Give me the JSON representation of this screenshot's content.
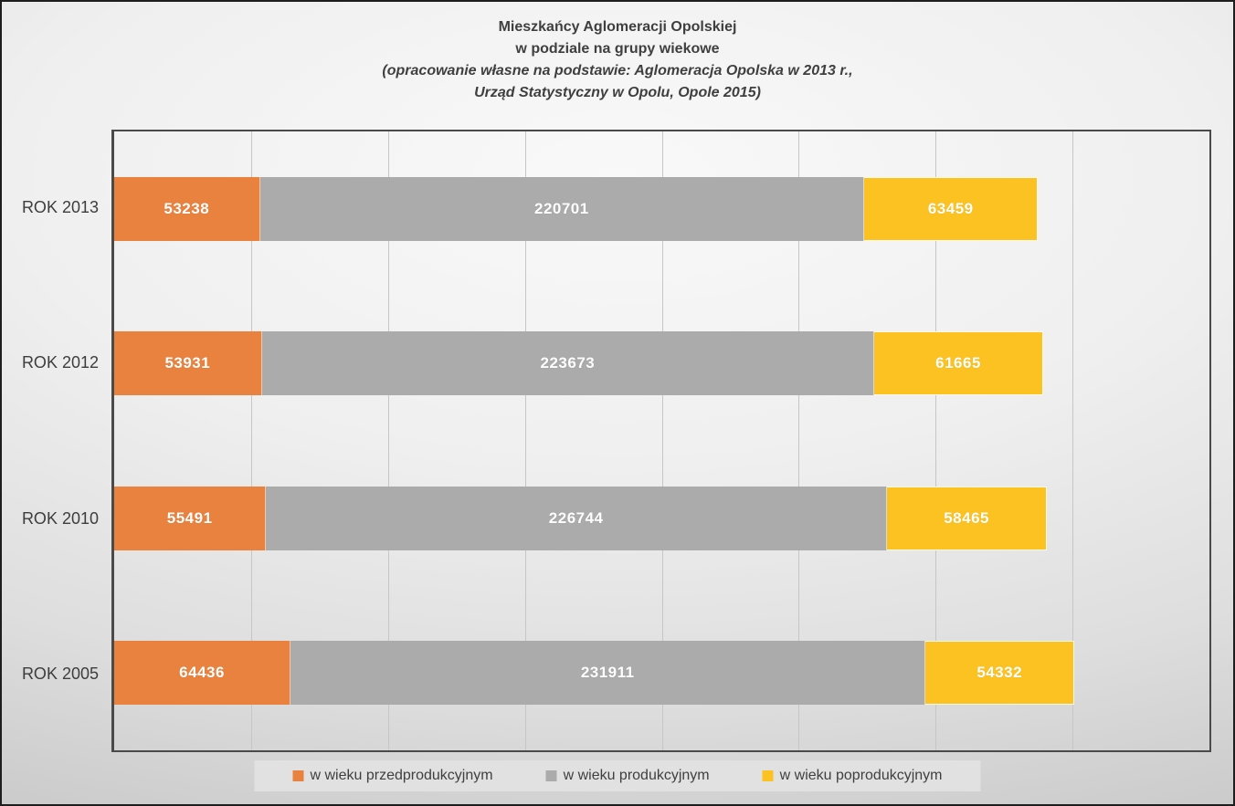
{
  "title": {
    "lines": [
      "Mieszkańcy Aglomeracji Opolskiej",
      "w podziale na grupy wiekowe",
      "(opracowanie własne na podstawie: Aglomeracja Opolska w 2013 r.,",
      "Urząd Statystyczny w Opolu, Opole 2015)"
    ]
  },
  "chart_data": {
    "type": "bar",
    "orientation": "horizontal",
    "stacked": true,
    "title": "Mieszkańcy Aglomeracji Opolskiej w podziale na grupy wiekowe (opracowanie własne na podstawie: Aglomeracja Opolska w 2013 r., Urząd Statystyczny w Opolu, Opole 2015)",
    "categories": [
      "ROK 2013",
      "ROK 2012",
      "ROK 2010",
      "ROK 2005"
    ],
    "series": [
      {
        "name": "w wieku przedprodukcyjnym",
        "color": "#E8823E",
        "values": [
          53238,
          53931,
          55491,
          64436
        ]
      },
      {
        "name": "w wieku produkcyjnym",
        "color": "#ABABAB",
        "values": [
          220701,
          223673,
          226744,
          231911
        ]
      },
      {
        "name": "w wieku poprodukcyjnym",
        "color": "#FBC222",
        "values": [
          63459,
          61665,
          58465,
          54332
        ]
      }
    ],
    "xlim": [
      0,
      400000
    ],
    "gridline_step": 50000,
    "grid": true,
    "x_tick_labels_visible": false,
    "legend_position": "bottom",
    "value_labels": "inside, white, bold"
  },
  "style": {
    "background_edge": "#c3c3c3",
    "background_center": "#f9f9f9",
    "plot_border": "#4a4a4a",
    "gridline_color": "#c6c6c6",
    "text_color": "#3f3f3f",
    "legend_background": "#e2e2e2"
  }
}
